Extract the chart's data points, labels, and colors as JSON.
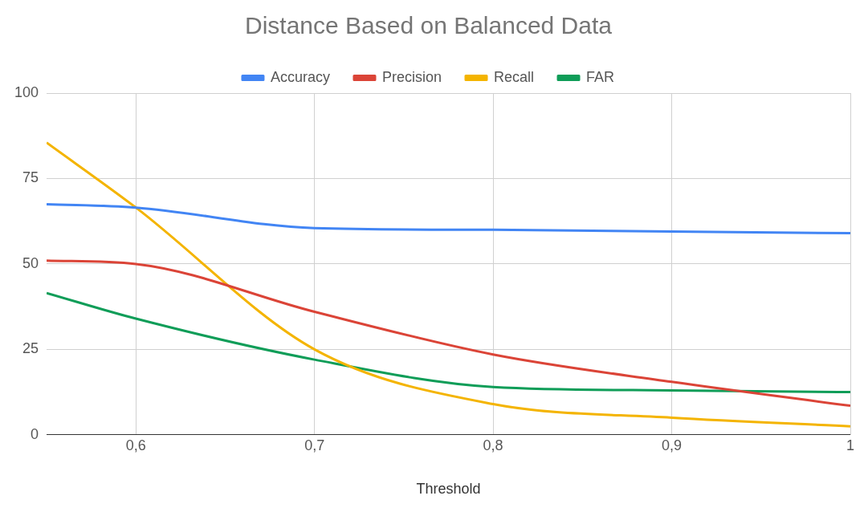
{
  "chart_data": {
    "type": "line",
    "title": "Distance Based on Balanced Data",
    "xlabel": "Threshold",
    "x": [
      0.55,
      0.6,
      0.7,
      0.8,
      0.9,
      1
    ],
    "series": [
      {
        "name": "Accuracy",
        "color": "#4285f4",
        "values": [
          67.5,
          66.5,
          60.5,
          60,
          59.5,
          59
        ]
      },
      {
        "name": "Precision",
        "color": "#db4437",
        "values": [
          51,
          50,
          36,
          23.5,
          15.5,
          8.5
        ]
      },
      {
        "name": "Recall",
        "color": "#f4b400",
        "values": [
          85.5,
          66.5,
          25,
          9,
          5,
          2.5
        ]
      },
      {
        "name": "FAR",
        "color": "#0f9d58",
        "values": [
          41.5,
          34,
          22,
          14,
          13,
          12.5
        ]
      }
    ],
    "xlim": [
      0.55,
      1
    ],
    "xticks": [
      {
        "value": 0.6,
        "label": "0,6"
      },
      {
        "value": 0.7,
        "label": "0,7"
      },
      {
        "value": 0.8,
        "label": "0,8"
      },
      {
        "value": 0.9,
        "label": "0,9"
      },
      {
        "value": 1,
        "label": "1"
      }
    ],
    "ylim": [
      0,
      100
    ],
    "yticks": [
      0,
      25,
      50,
      75,
      100
    ],
    "grid": true,
    "legend": "top",
    "marker": "none",
    "line_style": "solid"
  }
}
